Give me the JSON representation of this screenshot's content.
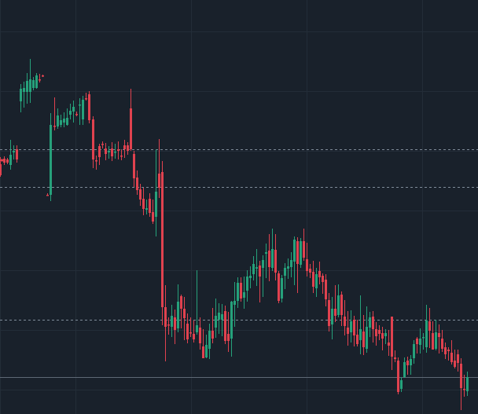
{
  "colors": {
    "background": "#19212b",
    "grid": "#232d38",
    "up": "#26a17b",
    "down": "#e0424f",
    "dashed_level": "#7f8b99",
    "solid_level": "#5d6875"
  },
  "chart_data": {
    "type": "candlestick",
    "grid": true,
    "y_range": [
      0,
      527
    ],
    "levels": [
      {
        "style": "dashed",
        "value": 190
      },
      {
        "style": "dashed",
        "value": 238
      },
      {
        "style": "dashed",
        "value": 407
      },
      {
        "style": "solid",
        "value": 480
      }
    ],
    "candles": [
      [
        0,
        209,
        223,
        200,
        225
      ],
      [
        2,
        203,
        205,
        202,
        206
      ],
      [
        5,
        202,
        207,
        199,
        210
      ],
      [
        9,
        203,
        207,
        201,
        209
      ],
      [
        13,
        210,
        197,
        178,
        216
      ],
      [
        17,
        194,
        192,
        185,
        203
      ],
      [
        21,
        190,
        203,
        185,
        207
      ],
      [
        26,
        129,
        113,
        107,
        143
      ],
      [
        30,
        117,
        112,
        104,
        137
      ],
      [
        34,
        117,
        103,
        93,
        132
      ],
      [
        38,
        117,
        101,
        75,
        131
      ],
      [
        42,
        112,
        102,
        98,
        115
      ],
      [
        46,
        112,
        96,
        93,
        113
      ],
      [
        50,
        101,
        101,
        94,
        105
      ],
      [
        54,
        96,
        96,
        95,
        98
      ],
      [
        60,
        248,
        248,
        246,
        249
      ],
      [
        64,
        248,
        159,
        144,
        256
      ],
      [
        69,
        160,
        160,
        124,
        166
      ],
      [
        73,
        161,
        147,
        138,
        164
      ],
      [
        77,
        159,
        153,
        146,
        162
      ],
      [
        81,
        156,
        151,
        143,
        162
      ],
      [
        85,
        159,
        150,
        138,
        160
      ],
      [
        89,
        146,
        141,
        132,
        152
      ],
      [
        93,
        142,
        136,
        128,
        156
      ],
      [
        97,
        145,
        145,
        142,
        148
      ],
      [
        101,
        134,
        133,
        125,
        159
      ],
      [
        105,
        152,
        127,
        122,
        159
      ],
      [
        109,
        125,
        125,
        118,
        128
      ],
      [
        113,
        120,
        153,
        116,
        157
      ],
      [
        118,
        152,
        203,
        148,
        214
      ],
      [
        122,
        204,
        205,
        198,
        216
      ],
      [
        126,
        186,
        200,
        183,
        210
      ],
      [
        130,
        183,
        184,
        180,
        189
      ],
      [
        134,
        189,
        196,
        182,
        204
      ],
      [
        138,
        194,
        192,
        186,
        202
      ],
      [
        142,
        189,
        199,
        181,
        205
      ],
      [
        146,
        194,
        193,
        183,
        202
      ],
      [
        150,
        190,
        192,
        180,
        203
      ],
      [
        154,
        198,
        199,
        190,
        204
      ],
      [
        158,
        185,
        190,
        178,
        201
      ],
      [
        162,
        185,
        192,
        181,
        197
      ],
      [
        166,
        138,
        190,
        113,
        192
      ],
      [
        170,
        196,
        227,
        192,
        238
      ],
      [
        174,
        226,
        242,
        217,
        248
      ],
      [
        178,
        241,
        254,
        234,
        262
      ],
      [
        182,
        253,
        266,
        239,
        274
      ],
      [
        186,
        267,
        265,
        254,
        273
      ],
      [
        190,
        253,
        271,
        246,
        276
      ],
      [
        194,
        270,
        282,
        254,
        285
      ],
      [
        198,
        276,
        244,
        190,
        301
      ],
      [
        202,
        221,
        239,
        177,
        252
      ],
      [
        206,
        219,
        391,
        205,
        414
      ],
      [
        210,
        391,
        416,
        363,
        460
      ],
      [
        214,
        413,
        414,
        404,
        426
      ],
      [
        218,
        416,
        402,
        388,
        429
      ],
      [
        222,
        404,
        420,
        394,
        438
      ],
      [
        226,
        418,
        384,
        362,
        423
      ],
      [
        230,
        377,
        393,
        375,
        418
      ],
      [
        234,
        393,
        405,
        378,
        433
      ],
      [
        238,
        412,
        432,
        399,
        437
      ],
      [
        242,
        423,
        424,
        404,
        429
      ],
      [
        246,
        425,
        432,
        408,
        436
      ],
      [
        250,
        423,
        414,
        344,
        426
      ],
      [
        254,
        417,
        437,
        404,
        445
      ],
      [
        258,
        441,
        456,
        419,
        456
      ],
      [
        262,
        455,
        439,
        426,
        456
      ],
      [
        266,
        444,
        421,
        412,
        457
      ],
      [
        270,
        421,
        431,
        392,
        437
      ],
      [
        274,
        417,
        402,
        380,
        430
      ],
      [
        278,
        407,
        398,
        386,
        425
      ],
      [
        282,
        407,
        400,
        387,
        428
      ],
      [
        286,
        396,
        434,
        389,
        438
      ],
      [
        290,
        425,
        434,
        397,
        448
      ],
      [
        294,
        431,
        384,
        383,
        454
      ],
      [
        298,
        388,
        383,
        359,
        416
      ],
      [
        302,
        383,
        360,
        353,
        392
      ],
      [
        306,
        360,
        380,
        353,
        384
      ],
      [
        310,
        379,
        372,
        352,
        393
      ],
      [
        314,
        370,
        352,
        344,
        384
      ],
      [
        318,
        354,
        351,
        339,
        367
      ],
      [
        322,
        349,
        336,
        326,
        357
      ],
      [
        326,
        342,
        340,
        317,
        364
      ],
      [
        330,
        338,
        352,
        332,
        385
      ],
      [
        334,
        341,
        331,
        325,
        378
      ],
      [
        338,
        323,
        321,
        310,
        354
      ],
      [
        342,
        319,
        340,
        298,
        358
      ],
      [
        346,
        341,
        317,
        291,
        345
      ],
      [
        350,
        318,
        347,
        298,
        357
      ],
      [
        354,
        348,
        383,
        345,
        386
      ],
      [
        358,
        380,
        354,
        350,
        385
      ],
      [
        362,
        351,
        341,
        335,
        368
      ],
      [
        366,
        342,
        339,
        329,
        355
      ],
      [
        370,
        340,
        331,
        321,
        353
      ],
      [
        374,
        333,
        305,
        301,
        363
      ],
      [
        378,
        307,
        336,
        302,
        373
      ],
      [
        382,
        337,
        307,
        303,
        341
      ],
      [
        386,
        307,
        328,
        291,
        332
      ],
      [
        390,
        330,
        345,
        309,
        352
      ],
      [
        394,
        342,
        347,
        336,
        354
      ],
      [
        398,
        346,
        365,
        332,
        373
      ],
      [
        402,
        367,
        349,
        341,
        378
      ],
      [
        406,
        345,
        353,
        333,
        362
      ],
      [
        410,
        351,
        359,
        348,
        374
      ],
      [
        414,
        356,
        381,
        349,
        390
      ],
      [
        418,
        382,
        415,
        373,
        422
      ],
      [
        422,
        413,
        393,
        378,
        432
      ],
      [
        426,
        393,
        402,
        363,
        410
      ],
      [
        430,
        401,
        376,
        362,
        404
      ],
      [
        434,
        375,
        401,
        371,
        415
      ],
      [
        438,
        403,
        415,
        382,
        427
      ],
      [
        442,
        417,
        425,
        396,
        440
      ],
      [
        446,
        423,
        409,
        395,
        436
      ],
      [
        450,
        407,
        427,
        402,
        441
      ],
      [
        454,
        426,
        438,
        407,
        441
      ],
      [
        458,
        433,
        419,
        376,
        451
      ],
      [
        462,
        422,
        442,
        401,
        452
      ],
      [
        466,
        444,
        416,
        390,
        449
      ],
      [
        470,
        417,
        404,
        397,
        429
      ],
      [
        474,
        403,
        419,
        396,
        436
      ],
      [
        478,
        419,
        428,
        410,
        440
      ],
      [
        482,
        420,
        425,
        414,
        433
      ],
      [
        486,
        424,
        431,
        416,
        446
      ],
      [
        490,
        428,
        424,
        419,
        438
      ],
      [
        494,
        436,
        440,
        420,
        453
      ],
      [
        498,
        403,
        454,
        403,
        471
      ],
      [
        502,
        455,
        457,
        446,
        461
      ],
      [
        506,
        459,
        499,
        455,
        502
      ],
      [
        510,
        495,
        484,
        480,
        499
      ],
      [
        514,
        480,
        461,
        455,
        481
      ],
      [
        518,
        459,
        465,
        454,
        477
      ],
      [
        522,
        465,
        457,
        452,
        477
      ],
      [
        526,
        456,
        438,
        433,
        463
      ],
      [
        530,
        431,
        438,
        429,
        450
      ],
      [
        534,
        439,
        431,
        418,
        450
      ],
      [
        538,
        430,
        429,
        424,
        445
      ],
      [
        542,
        442,
        408,
        388,
        449
      ],
      [
        546,
        409,
        421,
        392,
        443
      ],
      [
        550,
        424,
        445,
        409,
        445
      ],
      [
        554,
        444,
        423,
        407,
        446
      ],
      [
        558,
        424,
        429,
        413,
        450
      ],
      [
        562,
        431,
        444,
        420,
        448
      ],
      [
        566,
        442,
        451,
        436,
        457
      ],
      [
        570,
        445,
        447,
        442,
        459
      ],
      [
        574,
        449,
        461,
        433,
        464
      ],
      [
        578,
        459,
        467,
        445,
        469
      ],
      [
        582,
        451,
        462,
        445,
        473
      ],
      [
        586,
        463,
        494,
        456,
        522
      ],
      [
        590,
        495,
        496,
        477,
        505
      ],
      [
        594,
        498,
        480,
        473,
        504
      ]
    ]
  }
}
